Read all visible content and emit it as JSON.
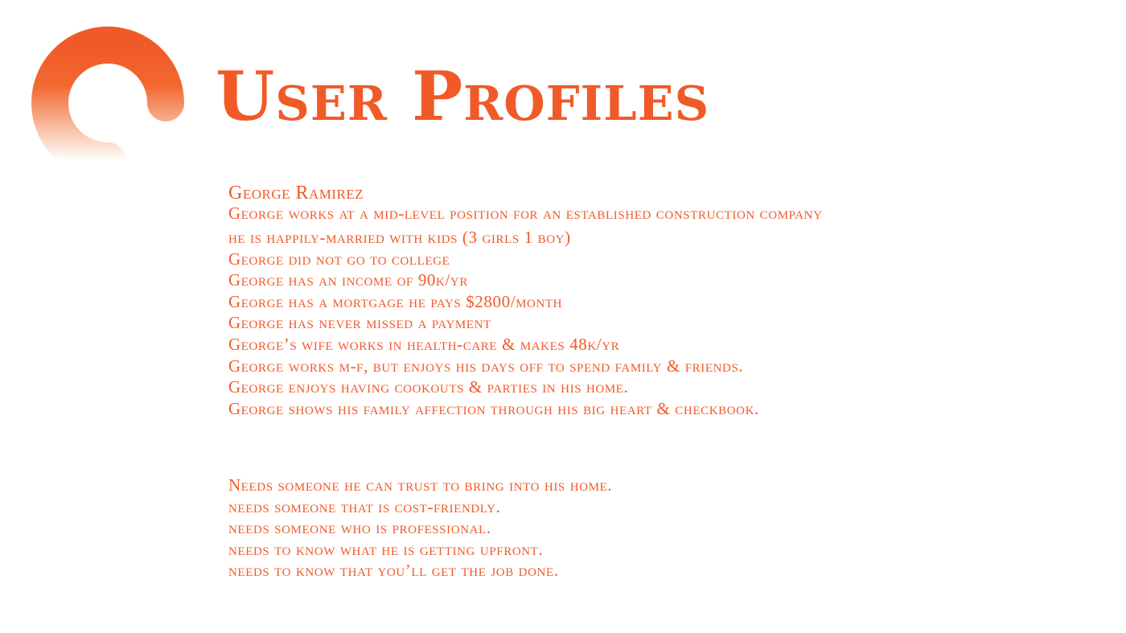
{
  "title": "User Profiles",
  "profile": {
    "name": "George Ramirez",
    "facts": [
      "George works at a mid-level position for an established construction company",
      "he is happily-married with kids (3 girls 1 boy)",
      "George did not go to college",
      "George has an income of 90k/yr",
      "George has a mortgage he pays $2800/month",
      "George has never missed a payment",
      "George’s wife works in health-care & makes 48k/yr",
      "George works m-f, but enjoys his days off to spend family & friends.",
      "George enjoys having cookouts & parties in his home.",
      "George shows his family affection through his big heart & checkbook."
    ],
    "needs": [
      "Needs someone he can trust to bring into his home.",
      "needs someone that is cost-friendly.",
      "needs someone who is professional.",
      "needs to know what he is getting upfront.",
      "needs to know that you’ll get the job done."
    ]
  },
  "colors": {
    "accent": "#f05a28"
  },
  "logo_icon": "orange-ring-logo-icon"
}
